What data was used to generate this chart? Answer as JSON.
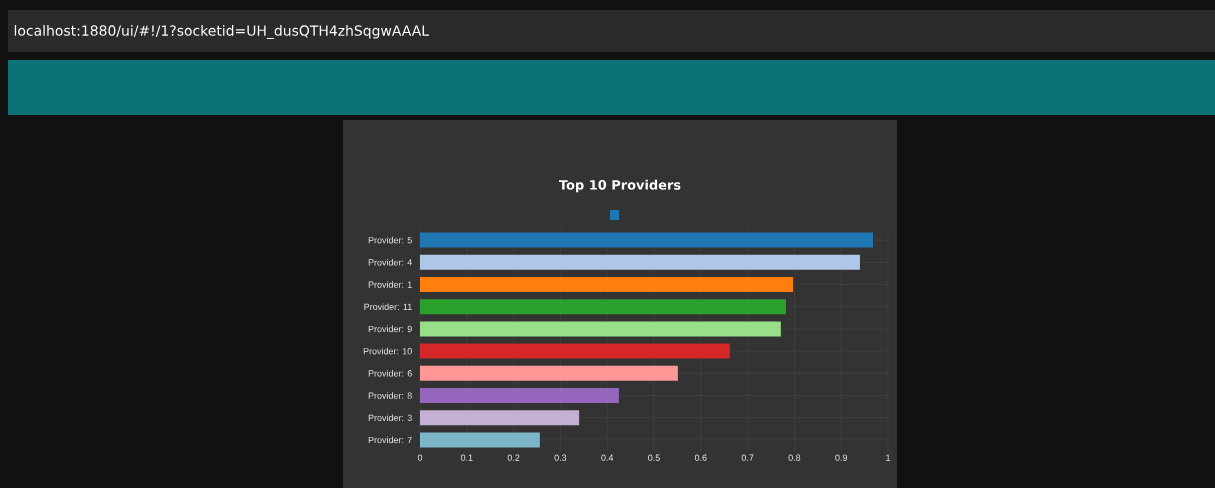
{
  "chart_data": {
    "type": "bar",
    "orientation": "horizontal",
    "title": "Top 10 Providers",
    "categories": [
      "Provider: 5",
      "Provider: 4",
      "Provider: 1",
      "Provider: 11",
      "Provider: 9",
      "Provider: 10",
      "Provider: 6",
      "Provider: 8",
      "Provider: 3",
      "Provider: 7"
    ],
    "values": [
      0.968,
      0.94,
      0.797,
      0.782,
      0.771,
      0.662,
      0.551,
      0.425,
      0.34,
      0.256
    ],
    "colors": [
      "#1f77b4",
      "#aec7e8",
      "#ff7f0e",
      "#2ca02c",
      "#98df8a",
      "#d62728",
      "#ff9896",
      "#9467bd",
      "#c5b0d5",
      "#7fb5c8"
    ],
    "xlim": [
      0,
      1
    ],
    "xticks": [
      0,
      0.1,
      0.2,
      0.3,
      0.4,
      0.5,
      0.6,
      0.7,
      0.8,
      0.9,
      1
    ],
    "grid": true,
    "annotations": [
      "localhost:1880/ui/#!/1?socketid=UH_dusQTH4zhSqgwAAAL"
    ]
  }
}
